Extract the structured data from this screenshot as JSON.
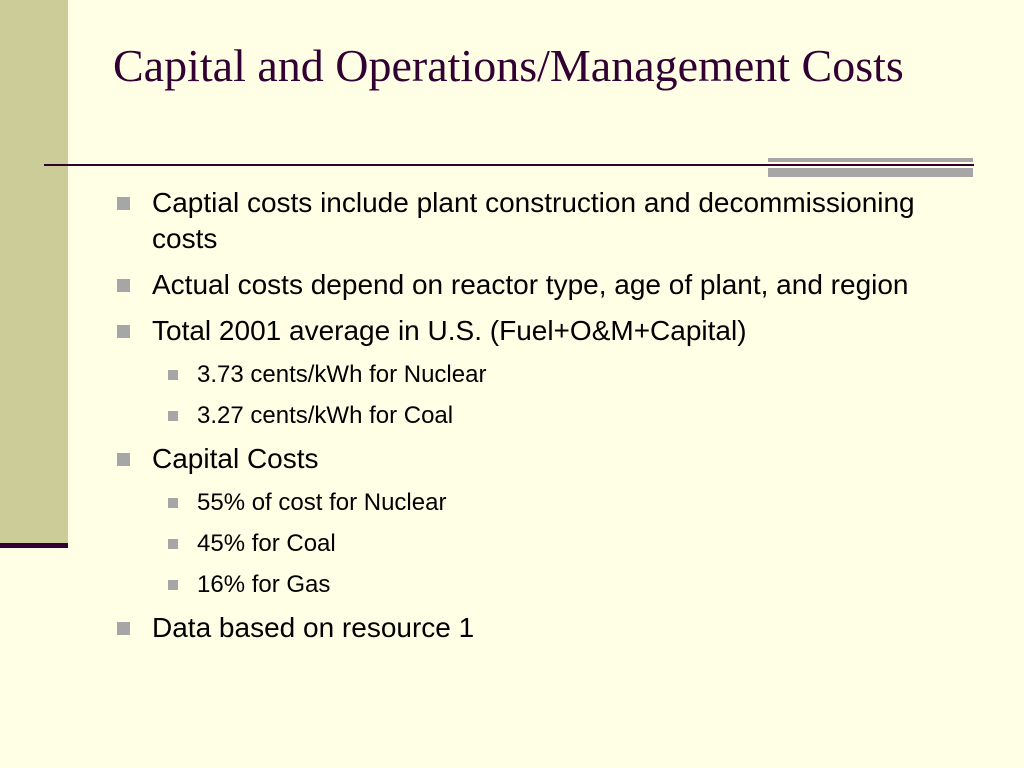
{
  "slide": {
    "title": "Capital and Operations/Management Costs",
    "colors": {
      "background": "#FFFFE5",
      "left_band": "#CCCC99",
      "title": "#330033",
      "rule": "#330033",
      "accent": "#A6A6A6",
      "text": "#000000"
    },
    "bullet_icon": "square-bullet-icon",
    "bullets": [
      {
        "level": 1,
        "text": "Captial costs include plant construction and decommissioning costs"
      },
      {
        "level": 1,
        "text": "Actual costs depend on reactor type, age of plant, and region"
      },
      {
        "level": 1,
        "text": "Total 2001 average in U.S. (Fuel+O&M+Capital)"
      },
      {
        "level": 2,
        "text": "3.73 cents/kWh for Nuclear"
      },
      {
        "level": 2,
        "text": "3.27 cents/kWh for Coal"
      },
      {
        "level": 1,
        "text": "Capital Costs"
      },
      {
        "level": 2,
        "text": "55% of cost for Nuclear"
      },
      {
        "level": 2,
        "text": "45% for Coal"
      },
      {
        "level": 2,
        "text": "16% for Gas"
      },
      {
        "level": 1,
        "text": "Data based on resource 1"
      }
    ]
  }
}
